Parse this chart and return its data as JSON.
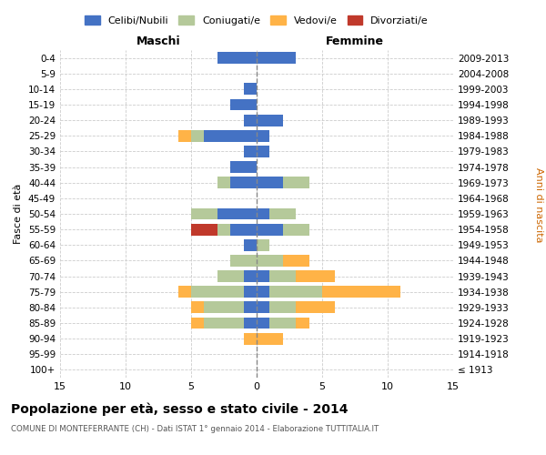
{
  "age_groups": [
    "100+",
    "95-99",
    "90-94",
    "85-89",
    "80-84",
    "75-79",
    "70-74",
    "65-69",
    "60-64",
    "55-59",
    "50-54",
    "45-49",
    "40-44",
    "35-39",
    "30-34",
    "25-29",
    "20-24",
    "15-19",
    "10-14",
    "5-9",
    "0-4"
  ],
  "birth_years": [
    "≤ 1913",
    "1914-1918",
    "1919-1923",
    "1924-1928",
    "1929-1933",
    "1934-1938",
    "1939-1943",
    "1944-1948",
    "1949-1953",
    "1954-1958",
    "1959-1963",
    "1964-1968",
    "1969-1973",
    "1974-1978",
    "1979-1983",
    "1984-1988",
    "1989-1993",
    "1994-1998",
    "1999-2003",
    "2004-2008",
    "2009-2013"
  ],
  "maschi": {
    "celibi": [
      0,
      0,
      0,
      1,
      1,
      1,
      1,
      0,
      1,
      2,
      3,
      0,
      2,
      2,
      1,
      4,
      1,
      2,
      1,
      0,
      3
    ],
    "coniugati": [
      0,
      0,
      0,
      3,
      3,
      4,
      2,
      2,
      0,
      1,
      2,
      0,
      1,
      0,
      0,
      1,
      0,
      0,
      0,
      0,
      0
    ],
    "vedovi": [
      0,
      0,
      1,
      1,
      1,
      1,
      0,
      0,
      0,
      0,
      0,
      0,
      0,
      0,
      0,
      1,
      0,
      0,
      0,
      0,
      0
    ],
    "divorziati": [
      0,
      0,
      0,
      0,
      0,
      0,
      0,
      0,
      0,
      2,
      0,
      0,
      0,
      0,
      0,
      0,
      0,
      0,
      0,
      0,
      0
    ]
  },
  "femmine": {
    "nubili": [
      0,
      0,
      0,
      1,
      1,
      1,
      1,
      0,
      0,
      2,
      1,
      0,
      2,
      0,
      1,
      1,
      2,
      0,
      0,
      0,
      3
    ],
    "coniugate": [
      0,
      0,
      0,
      2,
      2,
      4,
      2,
      2,
      1,
      2,
      2,
      0,
      2,
      0,
      0,
      0,
      0,
      0,
      0,
      0,
      0
    ],
    "vedove": [
      0,
      0,
      2,
      1,
      3,
      6,
      3,
      2,
      0,
      0,
      0,
      0,
      0,
      0,
      0,
      0,
      0,
      0,
      0,
      0,
      0
    ],
    "divorziate": [
      0,
      0,
      0,
      0,
      0,
      0,
      0,
      0,
      0,
      0,
      0,
      0,
      0,
      0,
      0,
      0,
      0,
      0,
      0,
      0,
      0
    ]
  },
  "colors": {
    "celibi_nubili": "#4472C4",
    "coniugati": "#B5C99A",
    "vedovi": "#FFB347",
    "divorziati": "#C0392B"
  },
  "title": "Popolazione per età, sesso e stato civile - 2014",
  "subtitle": "COMUNE DI MONTEFERRANTE (CH) - Dati ISTAT 1° gennaio 2014 - Elaborazione TUTTITALIA.IT",
  "xlabel_left": "Maschi",
  "xlabel_right": "Femmine",
  "ylabel_left": "Fasce di età",
  "ylabel_right": "Anni di nascita",
  "xlim": 15,
  "legend_labels": [
    "Celibi/Nubili",
    "Coniugati/e",
    "Vedovi/e",
    "Divorziati/e"
  ],
  "bg_color": "#ffffff",
  "grid_color": "#cccccc",
  "center_line_color": "#888888"
}
